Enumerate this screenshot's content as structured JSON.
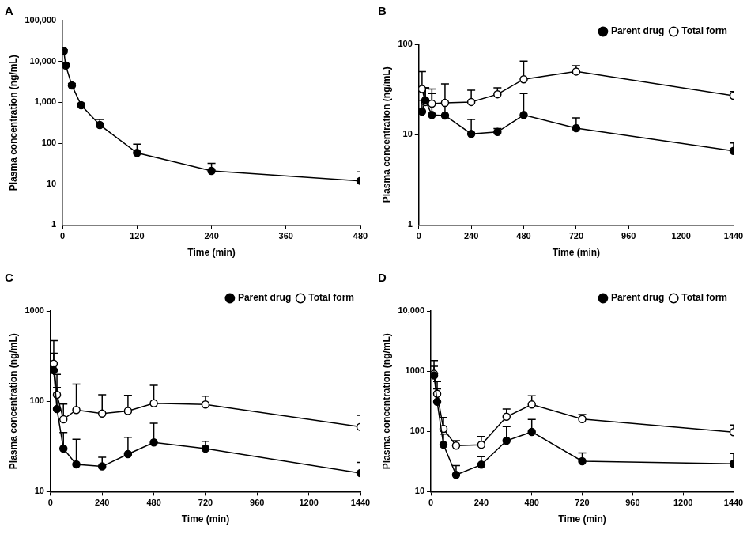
{
  "chart_data": [
    {
      "type": "line",
      "title": "A",
      "x_label": "Time (min)",
      "y_label": "Plasma concentration (ng/mL)",
      "log": "y",
      "grid": false,
      "x": [
        2,
        5,
        15,
        30,
        60,
        120,
        240,
        480
      ],
      "values": [
        18000,
        8000,
        2600,
        850,
        280,
        58,
        21,
        12
      ],
      "errors": [
        1500,
        800,
        300,
        100,
        100,
        37,
        11,
        8
      ],
      "color": "#000000",
      "marker": "circle",
      "xlim": [
        0,
        480
      ],
      "xticks": [
        0,
        120,
        240,
        360,
        480
      ],
      "ylim": [
        1,
        100000
      ],
      "yticks": [
        1,
        10,
        100,
        {
          "value": 1000,
          "label": "1,000"
        },
        {
          "value": 10000,
          "label": "10,000"
        },
        {
          "value": 100000,
          "label": "100,000"
        }
      ]
    },
    {
      "type": "line",
      "title": "B",
      "x_label": "Time (min)",
      "y_label": "Plasma concentration (ng/mL)",
      "log": "y",
      "grid": false,
      "legend": "top-right",
      "x": [
        15,
        30,
        60,
        120,
        240,
        360,
        480,
        720,
        1440
      ],
      "series": [
        {
          "name": "Parent drug",
          "color": "#000000",
          "marker": "circle",
          "values": [
            18,
            24,
            16.5,
            16.3,
            10.2,
            10.7,
            16.5,
            11.8,
            6.6
          ],
          "errors": [
            6,
            9,
            12,
            6,
            4.5,
            1,
            12,
            3.5,
            1.5
          ]
        },
        {
          "name": "Total form",
          "color": "#000000",
          "marker": "open_circle",
          "values": [
            32,
            23,
            22,
            22.5,
            23,
            28,
            41,
            50,
            27
          ],
          "errors": [
            18,
            10,
            10,
            14,
            8,
            5,
            24,
            8,
            3
          ]
        }
      ],
      "xlim": [
        0,
        1440
      ],
      "xticks": [
        0,
        240,
        480,
        720,
        960,
        1200,
        1440
      ],
      "ylim": [
        1,
        100
      ],
      "yticks": [
        1,
        10,
        100
      ]
    },
    {
      "type": "line",
      "title": "C",
      "x_label": "Time (min)",
      "y_label": "Plasma concentration (ng/mL)",
      "log": "y",
      "grid": false,
      "legend": "top-right",
      "x": [
        15,
        30,
        60,
        120,
        240,
        360,
        480,
        720,
        1440
      ],
      "series": [
        {
          "name": "Parent drug",
          "color": "#000000",
          "marker": "circle",
          "values": [
            220,
            82,
            30,
            20,
            19,
            26,
            35,
            30,
            16
          ],
          "errors": [
            120,
            60,
            15,
            18,
            5,
            14,
            22,
            6,
            5
          ]
        },
        {
          "name": "Total form",
          "color": "#000000",
          "marker": "open_circle",
          "values": [
            260,
            118,
            63,
            80,
            73,
            78,
            95,
            92,
            52
          ],
          "errors": [
            210,
            80,
            30,
            75,
            45,
            38,
            55,
            22,
            18
          ]
        }
      ],
      "xlim": [
        0,
        1440
      ],
      "xticks": [
        0,
        240,
        480,
        720,
        960,
        1200,
        1440
      ],
      "ylim": [
        10,
        1000
      ],
      "yticks": [
        10,
        100,
        1000
      ]
    },
    {
      "type": "line",
      "title": "D",
      "x_label": "Time (min)",
      "y_label": "Plasma concentration (ng/mL)",
      "log": "y",
      "grid": false,
      "legend": "top-right",
      "x": [
        15,
        30,
        60,
        120,
        240,
        360,
        480,
        720,
        1440
      ],
      "series": [
        {
          "name": "Parent drug",
          "color": "#000000",
          "marker": "circle",
          "values": [
            850,
            310,
            60,
            19,
            28,
            70,
            98,
            32,
            29
          ],
          "errors": [
            350,
            200,
            30,
            8,
            10,
            50,
            60,
            12,
            14
          ]
        },
        {
          "name": "Total form",
          "color": "#000000",
          "marker": "open_circle",
          "values": [
            900,
            420,
            110,
            58,
            60,
            175,
            280,
            160,
            97
          ],
          "errors": [
            600,
            250,
            60,
            12,
            22,
            60,
            110,
            30,
            30
          ]
        }
      ],
      "xlim": [
        0,
        1440
      ],
      "xticks": [
        0,
        240,
        480,
        720,
        960,
        1200,
        1440
      ],
      "ylim": [
        10,
        10000
      ],
      "yticks": [
        10,
        100,
        1000,
        {
          "value": 10000,
          "label": "10,000"
        }
      ]
    }
  ]
}
